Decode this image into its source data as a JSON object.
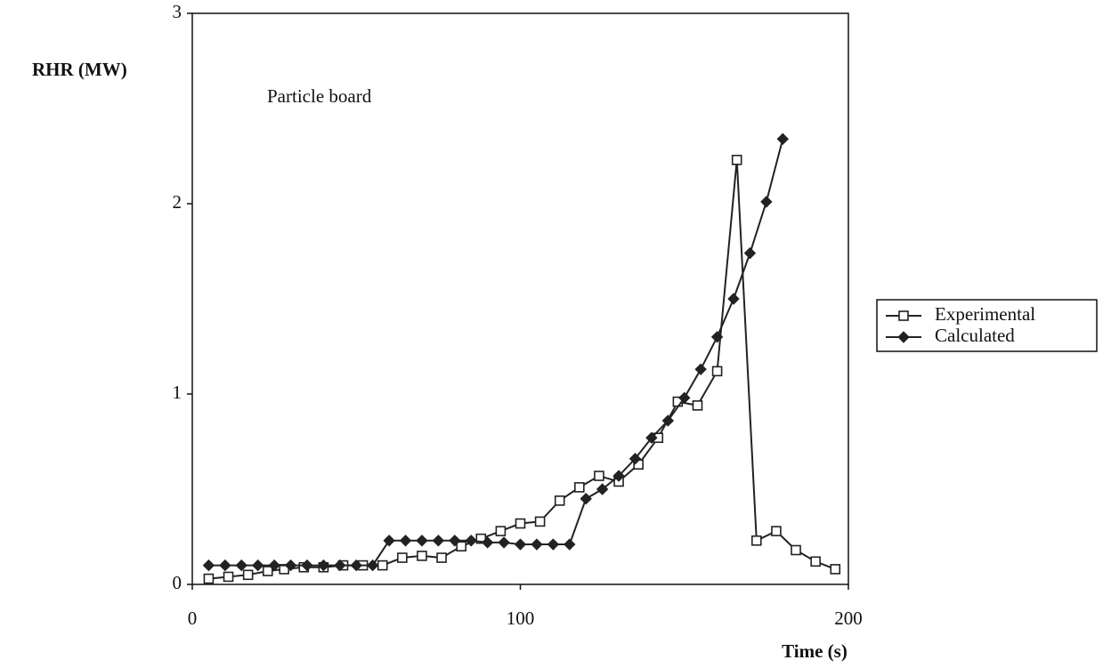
{
  "chart_data": {
    "type": "line",
    "annotation": "Particle board",
    "x_label": "Time (s)",
    "y_label": "RHR (MW)",
    "xlim": [
      0,
      200
    ],
    "xticks": [
      0,
      100,
      200
    ],
    "ylim": [
      0,
      3
    ],
    "yticks": [
      0,
      1,
      2,
      3
    ],
    "series": [
      {
        "name": "Experimental",
        "color": "#222222",
        "marker": "square",
        "x": [
          5,
          11,
          17,
          23,
          28,
          34,
          40,
          46,
          52,
          58,
          64,
          70,
          76,
          82,
          88,
          94,
          100,
          106,
          112,
          118,
          124,
          130,
          136,
          142,
          148,
          154,
          160,
          166,
          172,
          178,
          184,
          190,
          196
        ],
        "values": [
          0.03,
          0.04,
          0.05,
          0.07,
          0.08,
          0.09,
          0.09,
          0.1,
          0.1,
          0.1,
          0.14,
          0.15,
          0.14,
          0.2,
          0.24,
          0.28,
          0.32,
          0.33,
          0.44,
          0.51,
          0.57,
          0.54,
          0.63,
          0.77,
          0.96,
          0.94,
          1.12,
          2.23,
          0.23,
          0.28,
          0.18,
          0.12,
          0.08
        ]
      },
      {
        "name": "Calculated",
        "color": "#222222",
        "marker": "diamond",
        "x": [
          5,
          10,
          15,
          20,
          25,
          30,
          35,
          40,
          45,
          50,
          55,
          60,
          65,
          70,
          75,
          80,
          85,
          90,
          95,
          100,
          105,
          110,
          115,
          120,
          125,
          130,
          135,
          140,
          145,
          150,
          155,
          160,
          165,
          170,
          175,
          180
        ],
        "values": [
          0.1,
          0.1,
          0.1,
          0.1,
          0.1,
          0.1,
          0.1,
          0.1,
          0.1,
          0.1,
          0.1,
          0.23,
          0.23,
          0.23,
          0.23,
          0.23,
          0.23,
          0.22,
          0.22,
          0.21,
          0.21,
          0.21,
          0.21,
          0.45,
          0.5,
          0.57,
          0.66,
          0.77,
          0.86,
          0.98,
          1.13,
          1.3,
          1.5,
          1.74,
          2.01,
          2.34
        ]
      }
    ]
  }
}
